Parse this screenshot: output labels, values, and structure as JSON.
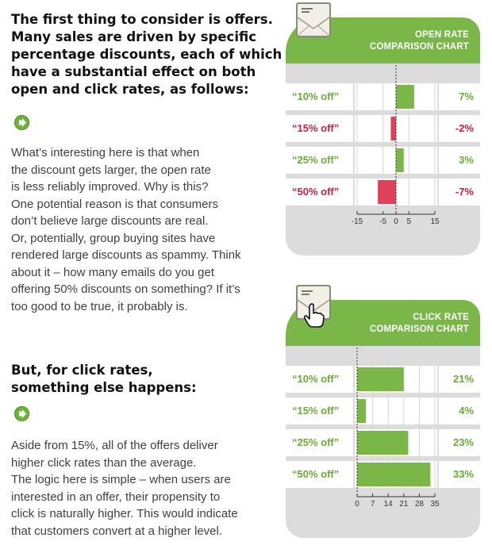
{
  "left": {
    "heading1": [
      "The first thing to consider is offers.",
      "Many sales are driven by specific",
      "percentage discounts, each of which",
      "have a substantial effect on both",
      "open and click rates, as follows:"
    ],
    "para1": [
      "What’s interesting here is that when",
      "the discount gets larger, the open rate",
      "is less reliably improved.  Why is this?",
      "One potential reason is that consumers",
      "don’t believe large discounts are real.",
      "Or, potentially, group buying sites have",
      "rendered large discounts as spammy.  Think",
      "about it – how many emails do you get",
      "offering 50% discounts on something?  If it’s",
      "too good to be true, it probably is."
    ],
    "heading2": [
      "But, for click rates,",
      "something else happens:"
    ],
    "para2": [
      "Aside from 15%, all of the offers deliver",
      "higher click rates than the average.",
      "The logic here is simple – when users are",
      "interested in an offer, their propensity to",
      "click is naturally higher.  This would indicate",
      "that customers convert at a higher level."
    ]
  },
  "colors": {
    "green": "#7ab648",
    "green_text": "#6aa93a",
    "red": "#e0415a",
    "red_text": "#c8203f",
    "panel_gray": "#dcdcdc",
    "arrow_green": "#6fb43a"
  },
  "icons": [
    "arrow-right-icon",
    "envelope-icon",
    "hand-cursor-icon"
  ],
  "chart_data": [
    {
      "type": "bar",
      "title": "OPEN RATE COMPARISON CHART",
      "orientation": "horizontal",
      "categories": [
        "“10% off”",
        "“15% off”",
        "“25% off”",
        "“50% off”"
      ],
      "values": [
        7,
        -2,
        3,
        -7
      ],
      "value_labels": [
        "7%",
        "-2%",
        "3%",
        "-7%"
      ],
      "xlim": [
        -15,
        15
      ],
      "ticks": [
        -15,
        -5,
        0,
        5,
        15
      ],
      "tick_labels": [
        "-15",
        "-5",
        "0",
        "5",
        "15"
      ],
      "positive_color": "#7ab648",
      "negative_color": "#e0415a"
    },
    {
      "type": "bar",
      "title": "CLICK RATE COMPARISON CHART",
      "orientation": "horizontal",
      "categories": [
        "“10% off”",
        "“15% off”",
        "“25% off”",
        "“50% off”"
      ],
      "values": [
        21,
        4,
        23,
        33
      ],
      "value_labels": [
        "21%",
        "4%",
        "23%",
        "33%"
      ],
      "xlim": [
        0,
        35
      ],
      "ticks": [
        0,
        7,
        14,
        21,
        28,
        35
      ],
      "tick_labels": [
        "0",
        "7",
        "14",
        "21",
        "28",
        "35"
      ],
      "positive_color": "#7ab648",
      "negative_color": "#e0415a"
    }
  ]
}
